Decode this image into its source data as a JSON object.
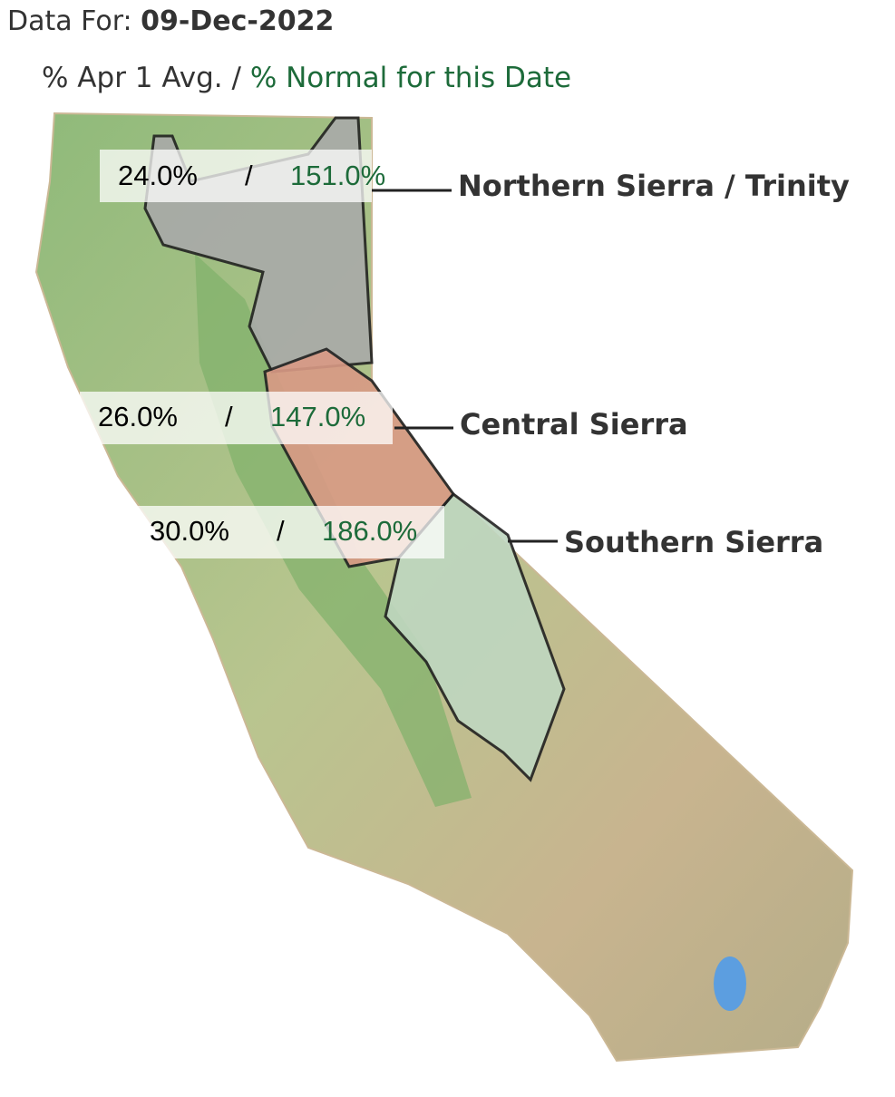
{
  "header": {
    "label": "Data For:",
    "date": "09-Dec-2022"
  },
  "legend": {
    "avg": "% Apr 1 Avg.",
    "separator": "/",
    "normal": "% Normal for this Date"
  },
  "regions": [
    {
      "name": "Northern Sierra / Trinity",
      "avg": "24.0%",
      "separator": "/",
      "normal": "151.0%"
    },
    {
      "name": "Central Sierra",
      "avg": "26.0%",
      "separator": "/",
      "normal": "147.0%"
    },
    {
      "name": "Southern Sierra",
      "avg": "30.0%",
      "separator": "/",
      "normal": "186.0%"
    }
  ]
}
